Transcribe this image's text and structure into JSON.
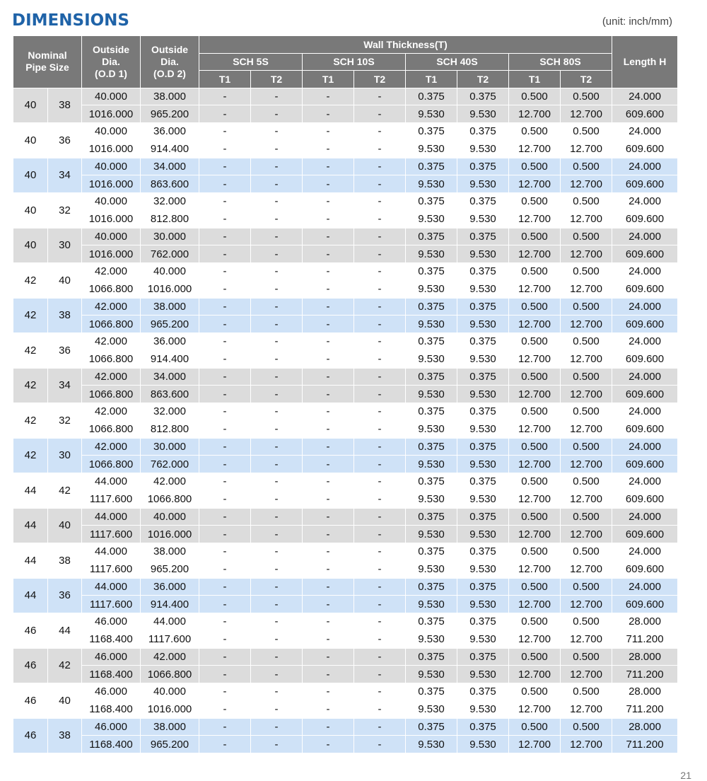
{
  "header": {
    "title": "DIMENSIONS",
    "unit": "(unit: inch/mm)"
  },
  "table": {
    "head": {
      "nominal": [
        "Nominal",
        "Pipe Size"
      ],
      "od1": [
        "Outside",
        "Dia.",
        "(O.D 1)"
      ],
      "od2": [
        "Outside",
        "Dia.",
        "(O.D 2)"
      ],
      "wall": "Wall Thickness(T)",
      "schedules": [
        "SCH 5S",
        "SCH 10S",
        "SCH 40S",
        "SCH 80S"
      ],
      "sub": [
        "T1",
        "T2",
        "T1",
        "T2",
        "T1",
        "T2",
        "T1",
        "T2"
      ],
      "length": "Length H"
    },
    "groups": [
      {
        "nominal": [
          "40",
          "38"
        ],
        "rows": [
          [
            "40.000",
            "38.000",
            "-",
            "-",
            "-",
            "-",
            "0.375",
            "0.375",
            "0.500",
            "0.500",
            "24.000"
          ],
          [
            "1016.000",
            "965.200",
            "-",
            "-",
            "-",
            "-",
            "9.530",
            "9.530",
            "12.700",
            "12.700",
            "609.600"
          ]
        ]
      },
      {
        "nominal": [
          "40",
          "36"
        ],
        "rows": [
          [
            "40.000",
            "36.000",
            "-",
            "-",
            "-",
            "-",
            "0.375",
            "0.375",
            "0.500",
            "0.500",
            "24.000"
          ],
          [
            "1016.000",
            "914.400",
            "-",
            "-",
            "-",
            "-",
            "9.530",
            "9.530",
            "12.700",
            "12.700",
            "609.600"
          ]
        ]
      },
      {
        "nominal": [
          "40",
          "34"
        ],
        "rows": [
          [
            "40.000",
            "34.000",
            "-",
            "-",
            "-",
            "-",
            "0.375",
            "0.375",
            "0.500",
            "0.500",
            "24.000"
          ],
          [
            "1016.000",
            "863.600",
            "-",
            "-",
            "-",
            "-",
            "9.530",
            "9.530",
            "12.700",
            "12.700",
            "609.600"
          ]
        ]
      },
      {
        "nominal": [
          "40",
          "32"
        ],
        "rows": [
          [
            "40.000",
            "32.000",
            "-",
            "-",
            "-",
            "-",
            "0.375",
            "0.375",
            "0.500",
            "0.500",
            "24.000"
          ],
          [
            "1016.000",
            "812.800",
            "-",
            "-",
            "-",
            "-",
            "9.530",
            "9.530",
            "12.700",
            "12.700",
            "609.600"
          ]
        ]
      },
      {
        "nominal": [
          "40",
          "30"
        ],
        "rows": [
          [
            "40.000",
            "30.000",
            "-",
            "-",
            "-",
            "-",
            "0.375",
            "0.375",
            "0.500",
            "0.500",
            "24.000"
          ],
          [
            "1016.000",
            "762.000",
            "-",
            "-",
            "-",
            "-",
            "9.530",
            "9.530",
            "12.700",
            "12.700",
            "609.600"
          ]
        ]
      },
      {
        "nominal": [
          "42",
          "40"
        ],
        "rows": [
          [
            "42.000",
            "40.000",
            "-",
            "-",
            "-",
            "-",
            "0.375",
            "0.375",
            "0.500",
            "0.500",
            "24.000"
          ],
          [
            "1066.800",
            "1016.000",
            "-",
            "-",
            "-",
            "-",
            "9.530",
            "9.530",
            "12.700",
            "12.700",
            "609.600"
          ]
        ]
      },
      {
        "nominal": [
          "42",
          "38"
        ],
        "rows": [
          [
            "42.000",
            "38.000",
            "-",
            "-",
            "-",
            "-",
            "0.375",
            "0.375",
            "0.500",
            "0.500",
            "24.000"
          ],
          [
            "1066.800",
            "965.200",
            "-",
            "-",
            "-",
            "-",
            "9.530",
            "9.530",
            "12.700",
            "12.700",
            "609.600"
          ]
        ]
      },
      {
        "nominal": [
          "42",
          "36"
        ],
        "rows": [
          [
            "42.000",
            "36.000",
            "-",
            "-",
            "-",
            "-",
            "0.375",
            "0.375",
            "0.500",
            "0.500",
            "24.000"
          ],
          [
            "1066.800",
            "914.400",
            "-",
            "-",
            "-",
            "-",
            "9.530",
            "9.530",
            "12.700",
            "12.700",
            "609.600"
          ]
        ]
      },
      {
        "nominal": [
          "42",
          "34"
        ],
        "rows": [
          [
            "42.000",
            "34.000",
            "-",
            "-",
            "-",
            "-",
            "0.375",
            "0.375",
            "0.500",
            "0.500",
            "24.000"
          ],
          [
            "1066.800",
            "863.600",
            "-",
            "-",
            "-",
            "-",
            "9.530",
            "9.530",
            "12.700",
            "12.700",
            "609.600"
          ]
        ]
      },
      {
        "nominal": [
          "42",
          "32"
        ],
        "rows": [
          [
            "42.000",
            "32.000",
            "-",
            "-",
            "-",
            "-",
            "0.375",
            "0.375",
            "0.500",
            "0.500",
            "24.000"
          ],
          [
            "1066.800",
            "812.800",
            "-",
            "-",
            "-",
            "-",
            "9.530",
            "9.530",
            "12.700",
            "12.700",
            "609.600"
          ]
        ]
      },
      {
        "nominal": [
          "42",
          "30"
        ],
        "rows": [
          [
            "42.000",
            "30.000",
            "-",
            "-",
            "-",
            "-",
            "0.375",
            "0.375",
            "0.500",
            "0.500",
            "24.000"
          ],
          [
            "1066.800",
            "762.000",
            "-",
            "-",
            "-",
            "-",
            "9.530",
            "9.530",
            "12.700",
            "12.700",
            "609.600"
          ]
        ]
      },
      {
        "nominal": [
          "44",
          "42"
        ],
        "rows": [
          [
            "44.000",
            "42.000",
            "-",
            "-",
            "-",
            "-",
            "0.375",
            "0.375",
            "0.500",
            "0.500",
            "24.000"
          ],
          [
            "1117.600",
            "1066.800",
            "-",
            "-",
            "-",
            "-",
            "9.530",
            "9.530",
            "12.700",
            "12.700",
            "609.600"
          ]
        ]
      },
      {
        "nominal": [
          "44",
          "40"
        ],
        "rows": [
          [
            "44.000",
            "40.000",
            "-",
            "-",
            "-",
            "-",
            "0.375",
            "0.375",
            "0.500",
            "0.500",
            "24.000"
          ],
          [
            "1117.600",
            "1016.000",
            "-",
            "-",
            "-",
            "-",
            "9.530",
            "9.530",
            "12.700",
            "12.700",
            "609.600"
          ]
        ]
      },
      {
        "nominal": [
          "44",
          "38"
        ],
        "rows": [
          [
            "44.000",
            "38.000",
            "-",
            "-",
            "-",
            "-",
            "0.375",
            "0.375",
            "0.500",
            "0.500",
            "24.000"
          ],
          [
            "1117.600",
            "965.200",
            "-",
            "-",
            "-",
            "-",
            "9.530",
            "9.530",
            "12.700",
            "12.700",
            "609.600"
          ]
        ]
      },
      {
        "nominal": [
          "44",
          "36"
        ],
        "rows": [
          [
            "44.000",
            "36.000",
            "-",
            "-",
            "-",
            "-",
            "0.375",
            "0.375",
            "0.500",
            "0.500",
            "24.000"
          ],
          [
            "1117.600",
            "914.400",
            "-",
            "-",
            "-",
            "-",
            "9.530",
            "9.530",
            "12.700",
            "12.700",
            "609.600"
          ]
        ]
      },
      {
        "nominal": [
          "46",
          "44"
        ],
        "rows": [
          [
            "46.000",
            "44.000",
            "-",
            "-",
            "-",
            "-",
            "0.375",
            "0.375",
            "0.500",
            "0.500",
            "28.000"
          ],
          [
            "1168.400",
            "1117.600",
            "-",
            "-",
            "-",
            "-",
            "9.530",
            "9.530",
            "12.700",
            "12.700",
            "711.200"
          ]
        ]
      },
      {
        "nominal": [
          "46",
          "42"
        ],
        "rows": [
          [
            "46.000",
            "42.000",
            "-",
            "-",
            "-",
            "-",
            "0.375",
            "0.375",
            "0.500",
            "0.500",
            "28.000"
          ],
          [
            "1168.400",
            "1066.800",
            "-",
            "-",
            "-",
            "-",
            "9.530",
            "9.530",
            "12.700",
            "12.700",
            "711.200"
          ]
        ]
      },
      {
        "nominal": [
          "46",
          "40"
        ],
        "rows": [
          [
            "46.000",
            "40.000",
            "-",
            "-",
            "-",
            "-",
            "0.375",
            "0.375",
            "0.500",
            "0.500",
            "28.000"
          ],
          [
            "1168.400",
            "1016.000",
            "-",
            "-",
            "-",
            "-",
            "9.530",
            "9.530",
            "12.700",
            "12.700",
            "711.200"
          ]
        ]
      },
      {
        "nominal": [
          "46",
          "38"
        ],
        "rows": [
          [
            "46.000",
            "38.000",
            "-",
            "-",
            "-",
            "-",
            "0.375",
            "0.375",
            "0.500",
            "0.500",
            "28.000"
          ],
          [
            "1168.400",
            "965.200",
            "-",
            "-",
            "-",
            "-",
            "9.530",
            "9.530",
            "12.700",
            "12.700",
            "711.200"
          ]
        ]
      }
    ]
  },
  "footer": {
    "page": "21"
  }
}
